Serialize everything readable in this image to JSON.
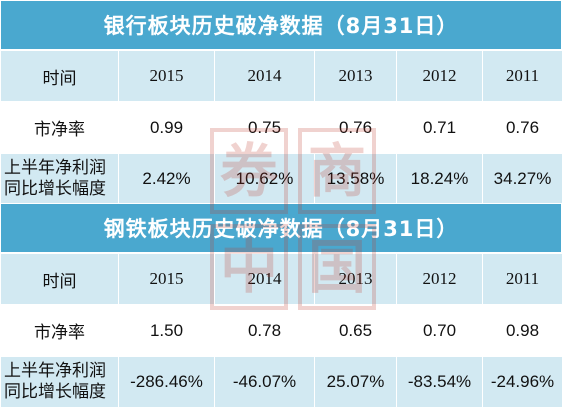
{
  "bank": {
    "title": "银行板块历史破净数据（8月31日）",
    "header_label": "时间",
    "years": [
      "2015",
      "2014",
      "2013",
      "2012",
      "2011"
    ],
    "pb_label": "市净率",
    "pb_values": [
      "0.99",
      "0.75",
      "0.76",
      "0.71",
      "0.76"
    ],
    "growth_label_line1": "上半年净利润",
    "growth_label_line2": "同比增长幅度",
    "growth_values": [
      "2.42%",
      "10.62%",
      "13.58%",
      "18.24%",
      "34.27%"
    ]
  },
  "steel": {
    "title": "钢铁板块历史破净数据（8月31日）",
    "header_label": "时间",
    "years": [
      "2015",
      "2014",
      "2013",
      "2012",
      "2011"
    ],
    "pb_label": "市净率",
    "pb_values": [
      "1.50",
      "0.78",
      "0.65",
      "0.70",
      "0.98"
    ],
    "growth_label_line1": "上半年净利润",
    "growth_label_line2": "同比增长幅度",
    "growth_values": [
      "-286.46%",
      "-46.07%",
      "25.07%",
      "-83.54%",
      "-24.96%"
    ]
  },
  "watermark": {
    "chars": [
      "券",
      "商",
      "中",
      "国"
    ],
    "color": "#c0392b"
  }
}
